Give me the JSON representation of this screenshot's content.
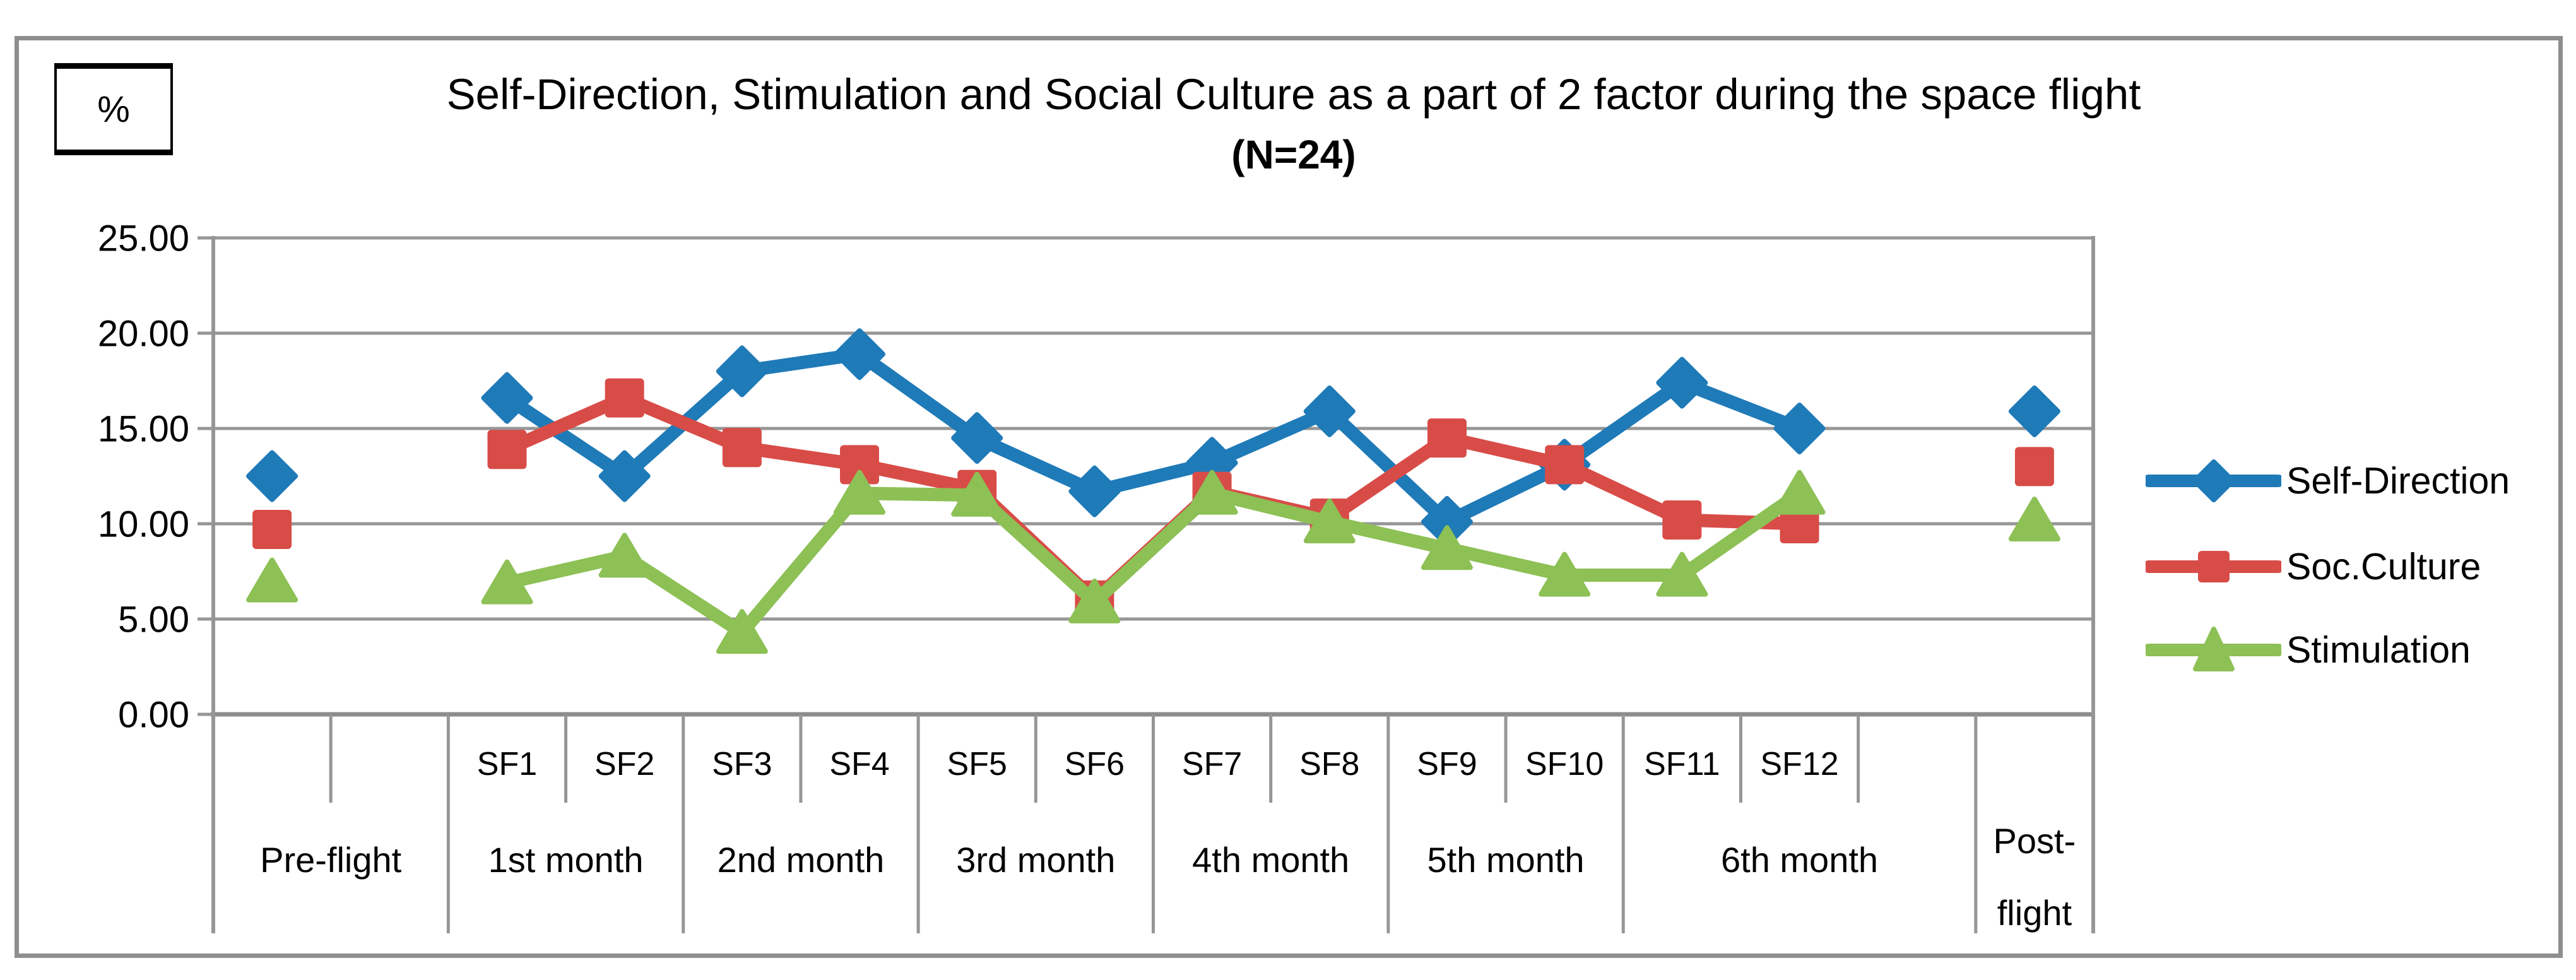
{
  "figure": {
    "percent_label": "%",
    "title": "Self-Direction, Stimulation and Social Culture as a part of 2 factor during the space flight",
    "subtitle": "(N=24)"
  },
  "chart_data": {
    "type": "line",
    "title": "Self-Direction, Stimulation and Social Culture as a part of 2 factor during the space flight",
    "subtitle": "(N=24)",
    "ylabel": "%",
    "ylim": [
      0,
      25
    ],
    "ytick_step": 5,
    "ytick_labels": [
      "25.00",
      "20.00",
      "15.00",
      "10.00",
      "5.00",
      "0.00"
    ],
    "grid": true,
    "legend_position": "right-outside",
    "categories": [
      "Pre-flight",
      "SF1",
      "SF2",
      "SF3",
      "SF4",
      "SF5",
      "SF6",
      "SF7",
      "SF8",
      "SF9",
      "SF10",
      "SF11",
      "SF12",
      "Post-flight"
    ],
    "x_groups": [
      {
        "label": "Pre-flight",
        "cells": [
          "",
          ""
        ]
      },
      {
        "label": "1st month",
        "cells": [
          "SF1",
          "SF2"
        ]
      },
      {
        "label": "2nd month",
        "cells": [
          "SF3",
          "SF4"
        ]
      },
      {
        "label": "3rd month",
        "cells": [
          "SF5",
          "SF6"
        ]
      },
      {
        "label": "4th month",
        "cells": [
          "SF7",
          "SF8"
        ]
      },
      {
        "label": "5th month",
        "cells": [
          "SF9",
          "SF10"
        ]
      },
      {
        "label": "6th month",
        "cells": [
          "SF11",
          "SF12",
          ""
        ]
      },
      {
        "label": "Post-flight",
        "label_lines": [
          "Post-",
          "flight"
        ],
        "cells": [
          ""
        ]
      }
    ],
    "series": [
      {
        "name": "Self-Direction",
        "color": "#1F7AB8",
        "marker": "diamond",
        "values": [
          12.5,
          16.6,
          12.5,
          18.0,
          18.9,
          14.5,
          11.7,
          13.2,
          15.9,
          10.1,
          13.1,
          17.4,
          15.0,
          15.9
        ],
        "connected_range": "SF1-SF12 only; Pre-flight and Post-flight are isolated points"
      },
      {
        "name": "Soc.Culture",
        "color": "#D84C48",
        "marker": "square",
        "values": [
          9.7,
          13.9,
          16.6,
          14.0,
          13.1,
          11.8,
          6.0,
          11.7,
          10.3,
          14.5,
          13.1,
          10.2,
          10.0,
          13.0
        ],
        "connected_range": "SF1-SF12 only; Pre-flight and Post-flight are isolated points"
      },
      {
        "name": "Stimulation",
        "color": "#8DC055",
        "marker": "triangle",
        "values": [
          7.0,
          6.9,
          8.3,
          4.3,
          11.6,
          11.5,
          5.9,
          11.6,
          10.1,
          8.7,
          7.3,
          7.3,
          11.6,
          10.2
        ],
        "connected_range": "SF1-SF12 only; Pre-flight and Post-flight are isolated points"
      }
    ],
    "colors": {
      "gridline": "#969696",
      "axis": "#8c8c8c",
      "frame": "#8e8e8e",
      "text": "#000000"
    }
  }
}
